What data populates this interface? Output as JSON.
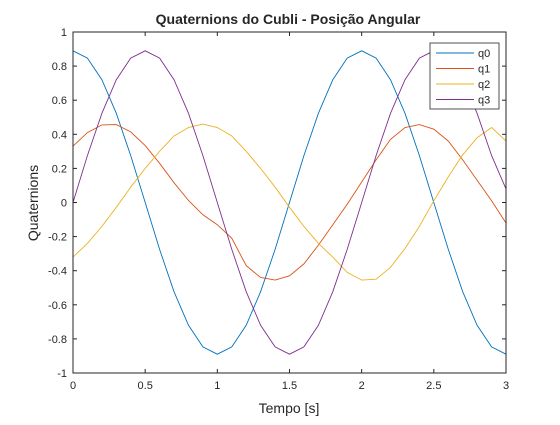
{
  "chart_data": {
    "type": "line",
    "title": "Quaternions do Cubli - Posição Angular",
    "xlabel": "Tempo [s]",
    "ylabel": "Quaternions",
    "xlim": [
      0,
      3
    ],
    "ylim": [
      -1,
      1
    ],
    "xticks": [
      0,
      0.5,
      1,
      1.5,
      2,
      2.5,
      3
    ],
    "xtick_labels": [
      "0",
      "0.5",
      "1",
      "1.5",
      "2",
      "2.5",
      "3"
    ],
    "yticks": [
      -1,
      -0.8,
      -0.6,
      -0.4,
      -0.2,
      0,
      0.2,
      0.4,
      0.6,
      0.8,
      1
    ],
    "ytick_labels": [
      "-1",
      "-0.8",
      "-0.6",
      "-0.4",
      "-0.2",
      "0",
      "0.2",
      "0.4",
      "0.6",
      "0.8",
      "1"
    ],
    "grid": false,
    "legend_position": "top-right",
    "x": [
      0,
      0.1,
      0.2,
      0.3,
      0.4,
      0.5,
      0.6,
      0.7,
      0.8,
      0.9,
      1,
      1.1,
      1.2,
      1.3,
      1.4,
      1.5,
      1.6,
      1.7,
      1.8,
      1.9,
      2,
      2.1,
      2.2,
      2.3,
      2.4,
      2.5,
      2.6,
      2.7,
      2.8,
      2.9,
      3
    ],
    "series": [
      {
        "name": "q0",
        "color": "#0072BD",
        "values": [
          0.89,
          0.847,
          0.72,
          0.523,
          0.275,
          0,
          -0.275,
          -0.523,
          -0.72,
          -0.847,
          -0.89,
          -0.847,
          -0.72,
          -0.523,
          -0.275,
          0,
          0.275,
          0.523,
          0.72,
          0.847,
          0.89,
          0.847,
          0.72,
          0.523,
          0.275,
          0,
          -0.275,
          -0.523,
          -0.72,
          -0.847,
          -0.89
        ]
      },
      {
        "name": "q1",
        "color": "#D95319",
        "values": [
          0.33,
          0.41,
          0.455,
          0.457,
          0.414,
          0.334,
          0.23,
          0.116,
          0.012,
          -0.072,
          -0.13,
          -0.21,
          -0.37,
          -0.44,
          -0.455,
          -0.43,
          -0.36,
          -0.25,
          -0.13,
          -0.01,
          0.12,
          0.25,
          0.37,
          0.44,
          0.457,
          0.43,
          0.36,
          0.25,
          0.13,
          0.01,
          -0.12
        ]
      },
      {
        "name": "q2",
        "color": "#EDB120",
        "values": [
          -0.32,
          -0.24,
          -0.14,
          -0.028,
          0.09,
          0.2,
          0.3,
          0.39,
          0.44,
          0.46,
          0.44,
          0.39,
          0.3,
          0.2,
          0.09,
          -0.028,
          -0.14,
          -0.24,
          -0.32,
          -0.41,
          -0.455,
          -0.45,
          -0.38,
          -0.27,
          -0.14,
          0.01,
          0.15,
          0.28,
          0.38,
          0.44,
          0.36
        ]
      },
      {
        "name": "q3",
        "color": "#7E2F8E",
        "values": [
          0,
          0.275,
          0.523,
          0.72,
          0.847,
          0.89,
          0.847,
          0.72,
          0.523,
          0.275,
          0,
          -0.275,
          -0.523,
          -0.72,
          -0.847,
          -0.89,
          -0.847,
          -0.72,
          -0.523,
          -0.275,
          0,
          0.275,
          0.523,
          0.72,
          0.847,
          0.89,
          0.847,
          0.72,
          0.523,
          0.275,
          0.08
        ]
      }
    ]
  }
}
